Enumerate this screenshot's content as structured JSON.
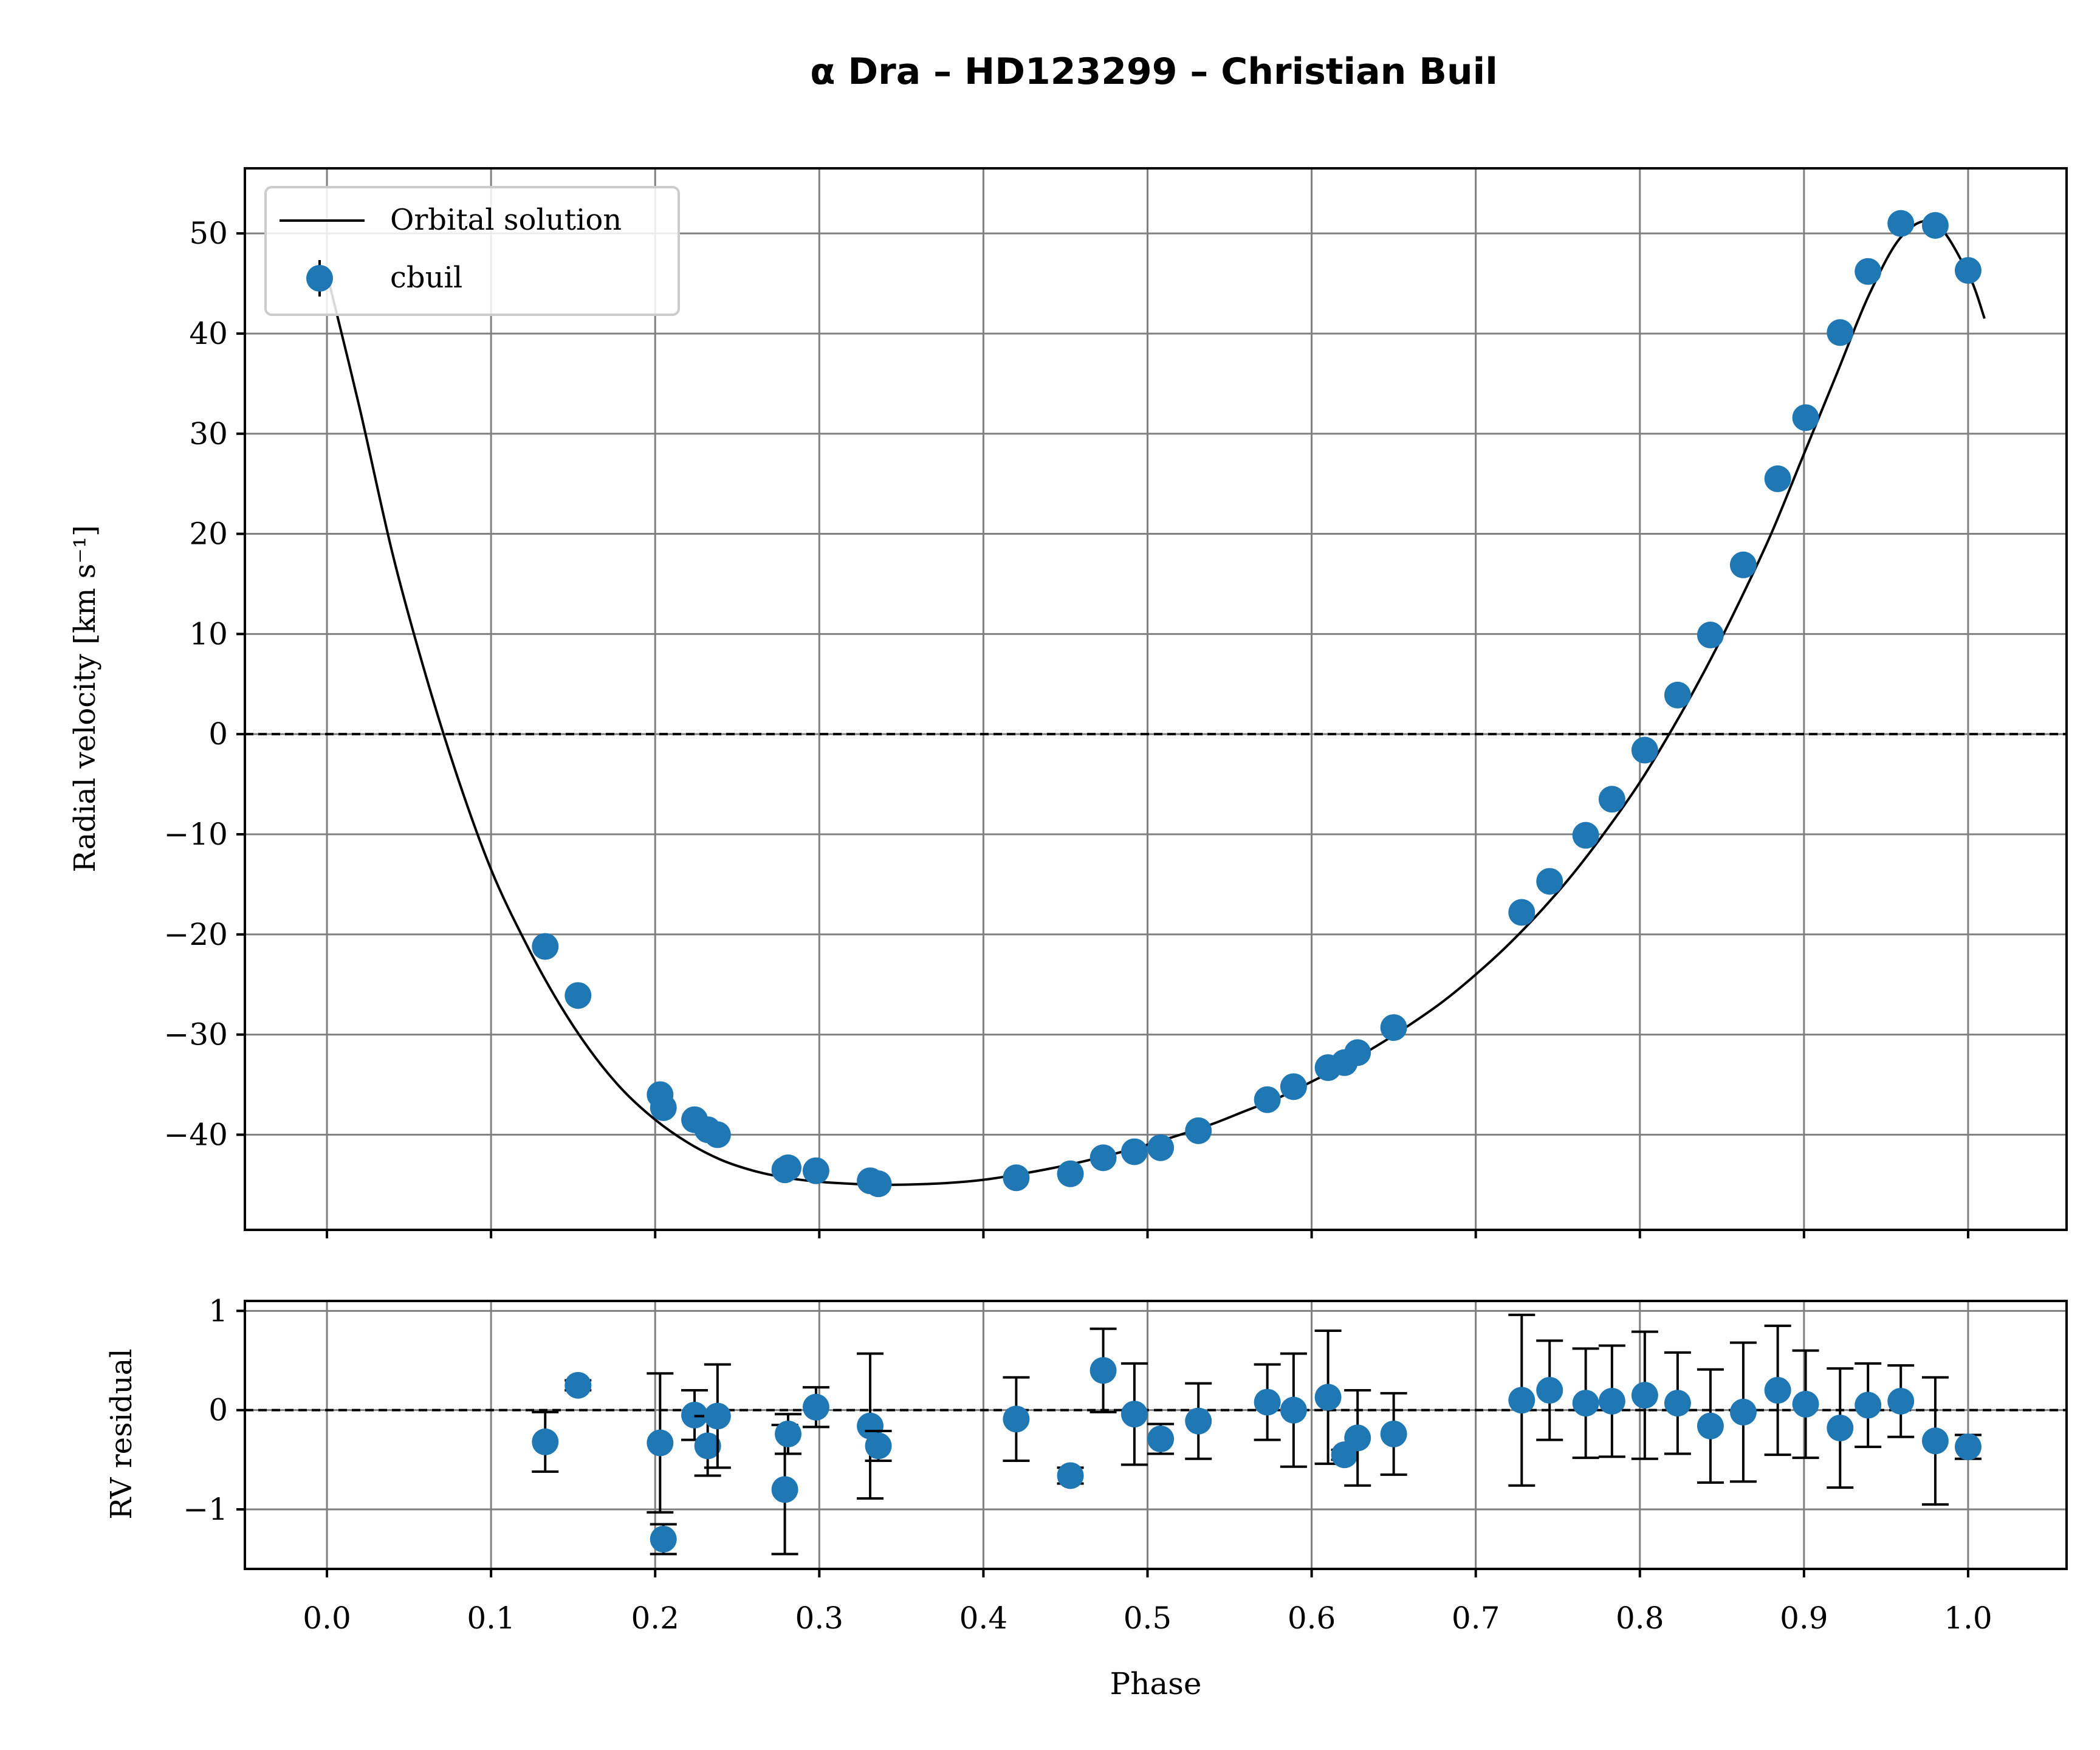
{
  "chart_data": {
    "type": "scatter",
    "title": "α Dra – HD123299 – Christian Buil",
    "xlabel": "Phase",
    "xlim": [
      -0.05,
      1.06
    ],
    "xticks": [
      0.0,
      0.1,
      0.2,
      0.3,
      0.4,
      0.5,
      0.6,
      0.7,
      0.8,
      0.9,
      1.0
    ],
    "xtick_labels": [
      "0.0",
      "0.1",
      "0.2",
      "0.3",
      "0.4",
      "0.5",
      "0.6",
      "0.7",
      "0.8",
      "0.9",
      "1.0"
    ],
    "legend": {
      "position": "top-left",
      "entries": [
        "Orbital solution",
        "cbuil"
      ]
    },
    "colors": {
      "points": "#1f77b4",
      "curve": "#000000",
      "grid": "#808080"
    },
    "grid": true,
    "rv_panel": {
      "ylabel": "Radial velocity [km s⁻¹]",
      "ylim": [
        -49.5,
        56.5
      ],
      "yticks": [
        50,
        40,
        30,
        20,
        10,
        0,
        -10,
        -20,
        -30,
        -40
      ],
      "ytick_labels": [
        "50",
        "40",
        "30",
        "20",
        "10",
        "0",
        "−10",
        "−20",
        "−30",
        "−40"
      ],
      "zero_line": true,
      "curve": {
        "name": "Orbital solution",
        "x": [
          0.0,
          0.02,
          0.04,
          0.06,
          0.08,
          0.1,
          0.12,
          0.14,
          0.16,
          0.18,
          0.2,
          0.22,
          0.24,
          0.26,
          0.28,
          0.3,
          0.32,
          0.34,
          0.36,
          0.38,
          0.4,
          0.42,
          0.44,
          0.46,
          0.48,
          0.5,
          0.52,
          0.54,
          0.56,
          0.58,
          0.6,
          0.62,
          0.64,
          0.66,
          0.68,
          0.7,
          0.72,
          0.74,
          0.76,
          0.78,
          0.8,
          0.82,
          0.84,
          0.86,
          0.88,
          0.9,
          0.92,
          0.94,
          0.96,
          0.98,
          1.0,
          1.01
        ],
        "y": [
          46.0,
          32.5,
          18.0,
          6.0,
          -4.5,
          -13.5,
          -20.5,
          -26.5,
          -31.5,
          -35.5,
          -38.5,
          -40.8,
          -42.5,
          -43.6,
          -44.3,
          -44.7,
          -44.9,
          -45.0,
          -44.95,
          -44.8,
          -44.5,
          -44.0,
          -43.4,
          -42.7,
          -41.9,
          -41.0,
          -40.0,
          -38.9,
          -37.6,
          -36.3,
          -34.7,
          -33.0,
          -31.1,
          -29.0,
          -26.7,
          -24.0,
          -21.0,
          -17.6,
          -13.8,
          -9.5,
          -4.8,
          0.6,
          6.5,
          13.0,
          20.0,
          28.0,
          36.0,
          44.0,
          49.8,
          51.0,
          46.0,
          41.5
        ]
      },
      "series": [
        {
          "name": "cbuil",
          "x": [
            0.133,
            0.153,
            0.203,
            0.205,
            0.224,
            0.232,
            0.238,
            0.279,
            0.281,
            0.298,
            0.331,
            0.336,
            0.42,
            0.453,
            0.473,
            0.492,
            0.508,
            0.531,
            0.573,
            0.589,
            0.61,
            0.62,
            0.628,
            0.65,
            0.728,
            0.745,
            0.767,
            0.783,
            0.803,
            0.823,
            0.843,
            0.863,
            0.884,
            0.901,
            0.922,
            0.939,
            0.959,
            0.98,
            1.0
          ],
          "y": [
            -21.2,
            -26.1,
            -36.0,
            -37.3,
            -38.5,
            -39.5,
            -40.0,
            -43.5,
            -43.3,
            -43.6,
            -44.6,
            -44.9,
            -44.3,
            -43.9,
            -42.3,
            -41.7,
            -41.3,
            -39.6,
            -36.5,
            -35.2,
            -33.3,
            -32.8,
            -31.8,
            -29.3,
            -17.8,
            -14.7,
            -10.1,
            -6.5,
            -1.6,
            3.9,
            9.9,
            16.9,
            25.5,
            31.6,
            40.1,
            46.2,
            51.0,
            50.8,
            46.3
          ]
        }
      ]
    },
    "residual_panel": {
      "ylabel": "RV residual",
      "ylim": [
        -1.6,
        1.1
      ],
      "yticks": [
        1,
        0,
        -1
      ],
      "ytick_labels": [
        "1",
        "0",
        "−1"
      ],
      "zero_line": true,
      "series": [
        {
          "name": "cbuil residuals",
          "x": [
            0.133,
            0.153,
            0.203,
            0.205,
            0.224,
            0.232,
            0.238,
            0.279,
            0.281,
            0.298,
            0.331,
            0.336,
            0.42,
            0.453,
            0.473,
            0.492,
            0.508,
            0.531,
            0.573,
            0.589,
            0.61,
            0.62,
            0.628,
            0.65,
            0.728,
            0.745,
            0.767,
            0.783,
            0.803,
            0.823,
            0.843,
            0.863,
            0.884,
            0.901,
            0.922,
            0.939,
            0.959,
            0.98,
            1.0
          ],
          "y": [
            -0.32,
            0.25,
            -0.33,
            -1.3,
            -0.05,
            -0.36,
            -0.06,
            -0.8,
            -0.24,
            0.03,
            -0.16,
            -0.36,
            -0.09,
            -0.66,
            0.4,
            -0.04,
            -0.29,
            -0.11,
            0.08,
            0.0,
            0.13,
            -0.45,
            -0.28,
            -0.24,
            0.1,
            0.2,
            0.07,
            0.09,
            0.15,
            0.07,
            -0.16,
            -0.02,
            0.2,
            0.06,
            -0.18,
            0.05,
            0.09,
            -0.31,
            -0.37
          ],
          "err": [
            0.3,
            0.05,
            0.7,
            0.15,
            0.25,
            0.3,
            0.52,
            0.65,
            0.2,
            0.2,
            0.73,
            0.15,
            0.42,
            0.08,
            0.42,
            0.51,
            0.15,
            0.38,
            0.38,
            0.57,
            0.67,
            0.05,
            0.48,
            0.41,
            0.86,
            0.5,
            0.55,
            0.56,
            0.64,
            0.51,
            0.57,
            0.7,
            0.65,
            0.54,
            0.6,
            0.42,
            0.36,
            0.64,
            0.12
          ]
        }
      ]
    }
  }
}
